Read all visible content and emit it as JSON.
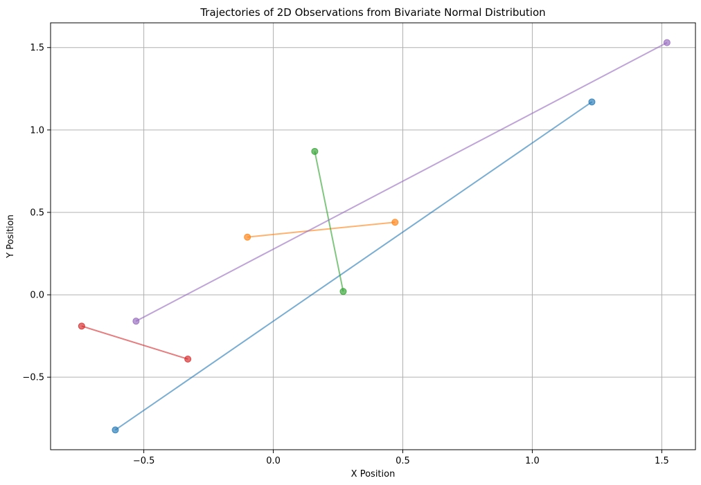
{
  "chart_data": {
    "type": "line",
    "title": "Trajectories of 2D Observations from Bivariate Normal Distribution",
    "xlabel": "X Position",
    "ylabel": "Y Position",
    "xlim": [
      -0.86,
      1.63
    ],
    "ylim": [
      -0.94,
      1.65
    ],
    "grid": true,
    "x_ticks": [
      {
        "value": -0.5,
        "label": "−0.5"
      },
      {
        "value": 0.0,
        "label": "0.0"
      },
      {
        "value": 0.5,
        "label": "0.5"
      },
      {
        "value": 1.0,
        "label": "1.0"
      },
      {
        "value": 1.5,
        "label": "1.5"
      }
    ],
    "y_ticks": [
      {
        "value": -0.5,
        "label": "−0.5"
      },
      {
        "value": 0.0,
        "label": "0.0"
      },
      {
        "value": 0.5,
        "label": "0.5"
      },
      {
        "value": 1.0,
        "label": "1.0"
      },
      {
        "value": 1.5,
        "label": "1.5"
      }
    ],
    "series": [
      {
        "color": "#1f77b4",
        "points": [
          [
            -0.61,
            -0.82
          ],
          [
            1.23,
            1.17
          ]
        ]
      },
      {
        "color": "#ff7f0e",
        "points": [
          [
            -0.1,
            0.35
          ],
          [
            0.47,
            0.44
          ]
        ]
      },
      {
        "color": "#2ca02c",
        "points": [
          [
            0.16,
            0.87
          ],
          [
            0.27,
            0.02
          ]
        ]
      },
      {
        "color": "#d62728",
        "points": [
          [
            -0.74,
            -0.19
          ],
          [
            -0.33,
            -0.39
          ]
        ]
      },
      {
        "color": "#9467bd",
        "points": [
          [
            -0.53,
            -0.16
          ],
          [
            1.52,
            1.53
          ]
        ]
      }
    ]
  }
}
